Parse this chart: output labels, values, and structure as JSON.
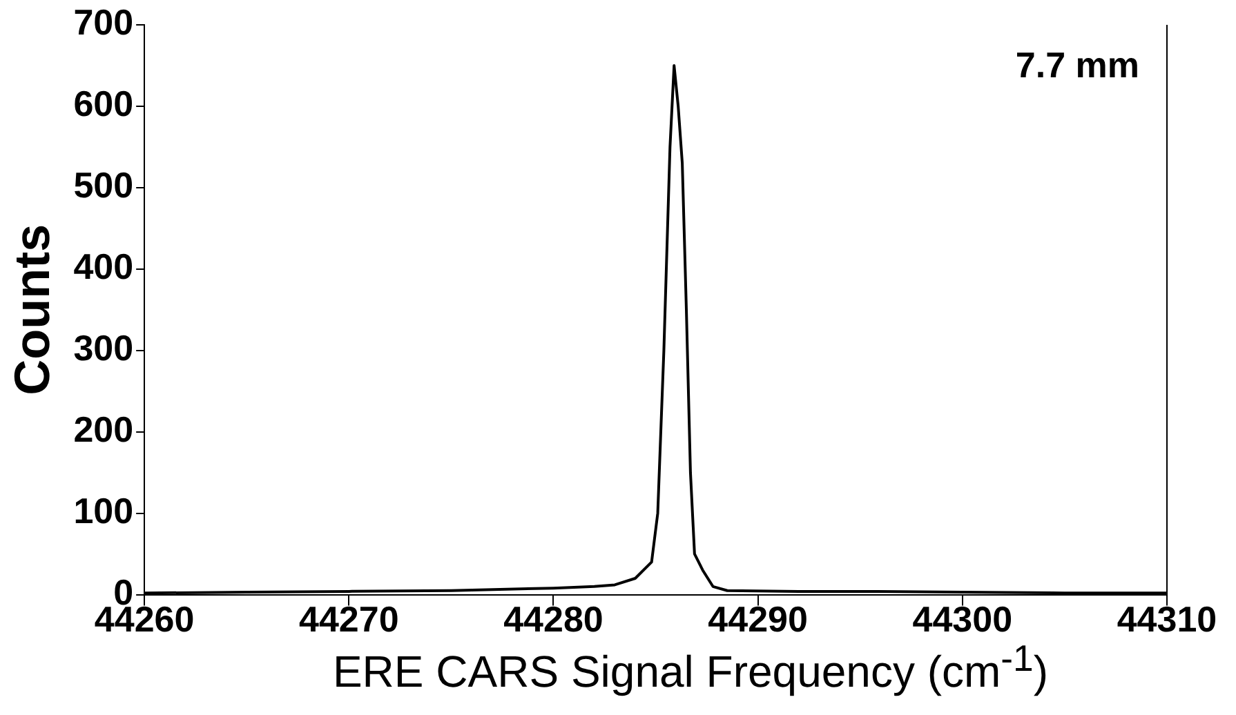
{
  "chart_data": {
    "type": "line",
    "xlabel": "ERE CARS Signal Frequency (cm$^{-1}$)",
    "ylabel": "Counts",
    "annotations": [
      "7.7 mm"
    ],
    "x": [
      44260,
      44265,
      44270,
      44275,
      44280,
      44282,
      44283,
      44284,
      44284.8,
      44285.1,
      44285.4,
      44285.7,
      44285.9,
      44286.1,
      44286.3,
      44286.5,
      44286.7,
      44286.9,
      44287.3,
      44287.8,
      44288.5,
      44292,
      44295,
      44300,
      44305,
      44310
    ],
    "series": [
      {
        "color": "#000000",
        "values": [
          2,
          3,
          4,
          5,
          8,
          10,
          12,
          20,
          40,
          100,
          300,
          550,
          650,
          600,
          530,
          350,
          150,
          50,
          30,
          10,
          5,
          4,
          4,
          3,
          2,
          2
        ]
      }
    ],
    "xlim": [
      44260,
      44310
    ],
    "xticks": [
      44260,
      44270,
      44280,
      44290,
      44300,
      44310
    ],
    "ylim": [
      0,
      700
    ],
    "yticks": [
      0,
      100,
      200,
      300,
      400,
      500,
      600,
      700
    ],
    "grid": false,
    "legend": false,
    "marker": "none",
    "line_style": "solid"
  }
}
